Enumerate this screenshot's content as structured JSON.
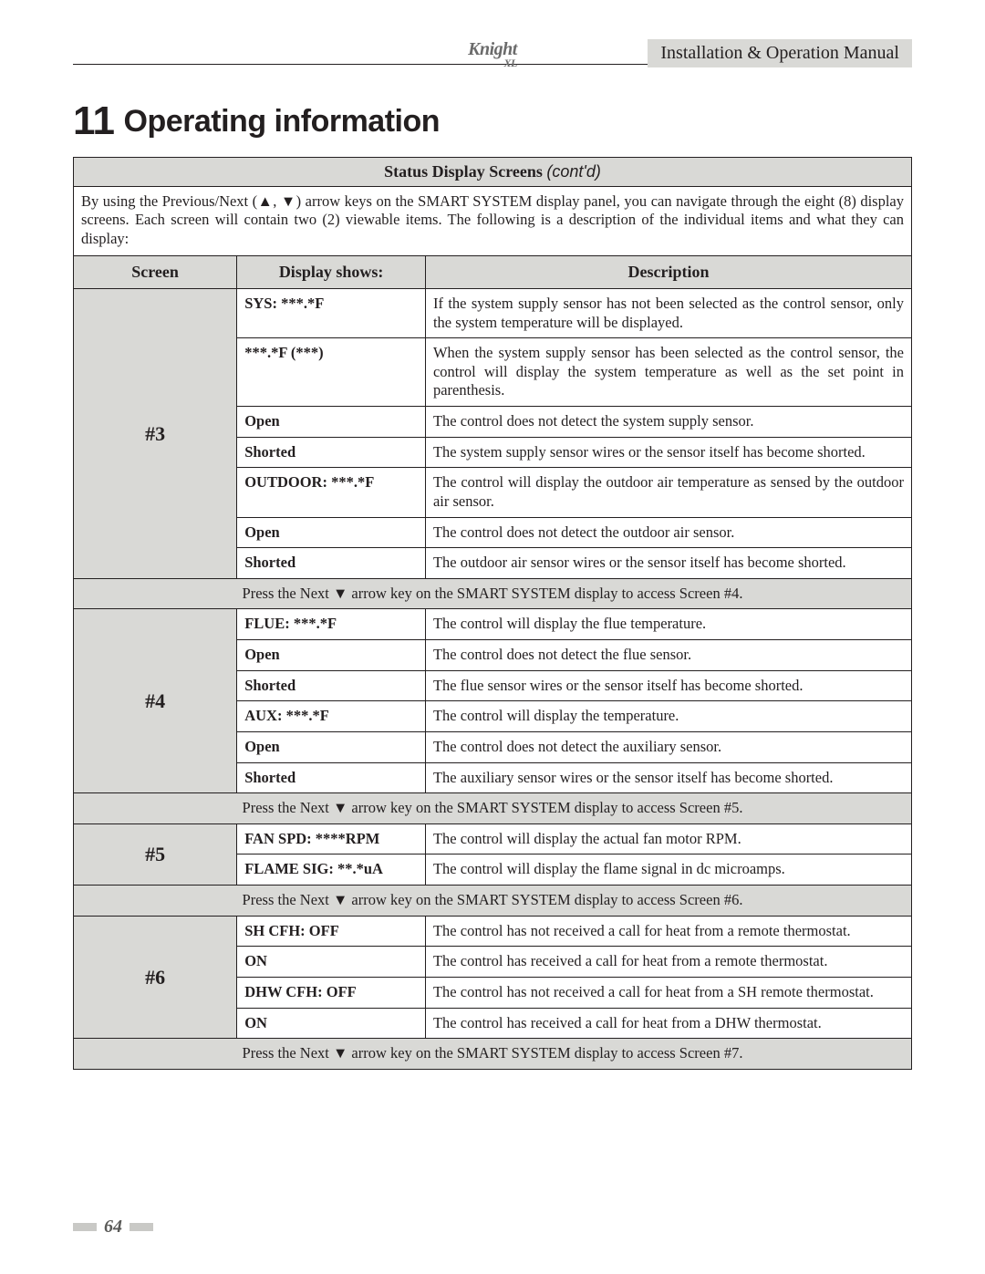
{
  "header": {
    "logo_text": "Knight",
    "logo_sub": "XL",
    "doc_title": "Installation & Operation Manual"
  },
  "section": {
    "number": "11",
    "title": "Operating information"
  },
  "table": {
    "caption_bold": "Status Display Screens",
    "caption_ital": "(cont'd)",
    "intro": "By using the Previous/Next (▲, ▼) arrow keys on the SMART SYSTEM display panel, you can navigate through the eight (8) display screens.  Each screen will contain two (2) viewable items.  The following is a description of the individual items and what they can display:",
    "head": {
      "c1": "Screen",
      "c2": "Display shows:",
      "c3": "Description"
    },
    "nav_prefix": "Press the Next ▼ arrow key on the SMART SYSTEM display to access Screen ",
    "screens": [
      {
        "id": "#3",
        "rows": [
          {
            "disp": "SYS: ***.*F",
            "desc": "If the system supply sensor has not been selected as the control sensor, only the system temperature will be displayed."
          },
          {
            "disp": "***.*F (***)",
            "desc": "When the system supply sensor has been selected as the control sensor, the control will display the system temperature as well as the set point in parenthesis."
          },
          {
            "disp": "Open",
            "desc": "The control does not detect the system supply sensor."
          },
          {
            "disp": "Shorted",
            "desc": "The system supply sensor wires or the sensor itself has become shorted."
          },
          {
            "disp": "OUTDOOR: ***.*F",
            "desc": "The control will display the outdoor air temperature as sensed by the outdoor air sensor."
          },
          {
            "disp": "Open",
            "desc": "The control does not detect the outdoor air sensor."
          },
          {
            "disp": "Shorted",
            "desc": "The outdoor air sensor wires or the sensor itself has become shorted."
          }
        ],
        "nav_to": "#4."
      },
      {
        "id": "#4",
        "rows": [
          {
            "disp": "FLUE: ***.*F",
            "desc": "The control will display the flue temperature."
          },
          {
            "disp": "Open",
            "desc": "The control does not detect the flue sensor."
          },
          {
            "disp": "Shorted",
            "desc": "The flue sensor wires or the sensor itself has become shorted."
          },
          {
            "disp": "AUX: ***.*F",
            "desc": "The control will display the temperature."
          },
          {
            "disp": "Open",
            "desc": "The control does not detect the auxiliary sensor."
          },
          {
            "disp": "Shorted",
            "desc": "The auxiliary sensor wires or the sensor itself has become shorted."
          }
        ],
        "nav_to": "#5."
      },
      {
        "id": "#5",
        "rows": [
          {
            "disp": "FAN SPD: ****RPM",
            "desc": "The control will display the actual fan motor RPM."
          },
          {
            "disp": "FLAME SIG: **.*uA",
            "desc": "The control will display the flame signal in dc microamps."
          }
        ],
        "nav_to": "#6."
      },
      {
        "id": "#6",
        "rows": [
          {
            "disp": "SH CFH: OFF",
            "desc": "The control has not received a call for heat from a remote  thermostat."
          },
          {
            "disp": "ON",
            "desc": "The control has received a call for heat from a remote thermostat."
          },
          {
            "disp": "DHW CFH: OFF",
            "desc": "The control has not received a call for heat from a SH remote thermostat."
          },
          {
            "disp": "ON",
            "desc": "The control has received a call for heat from a DHW thermostat."
          }
        ],
        "nav_to": "#7."
      }
    ]
  },
  "footer": {
    "page_number": "64"
  }
}
